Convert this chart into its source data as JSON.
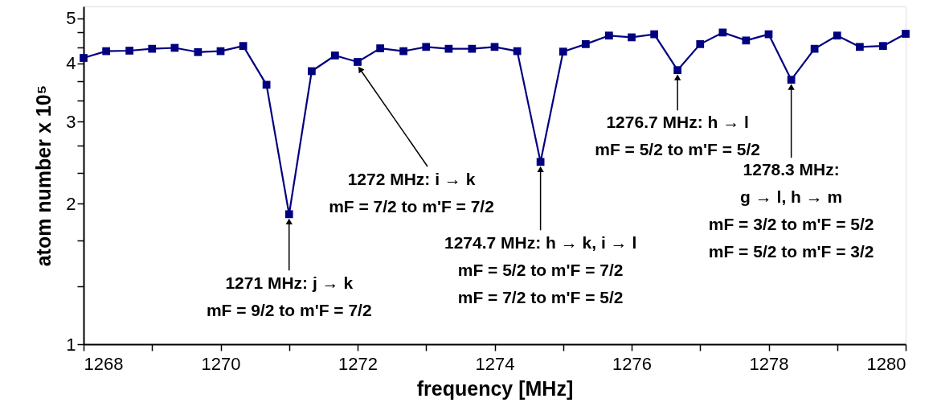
{
  "chart_data": {
    "type": "line",
    "xlabel": "frequency [MHz]",
    "ylabel": "atom number x 10⁵",
    "x": [
      1268,
      1268.33,
      1268.67,
      1269,
      1269.33,
      1269.67,
      1270,
      1270.33,
      1270.67,
      1271,
      1271.33,
      1271.67,
      1272,
      1272.33,
      1272.67,
      1273,
      1273.33,
      1273.67,
      1274,
      1274.33,
      1274.67,
      1275,
      1275.33,
      1275.67,
      1276,
      1276.33,
      1276.67,
      1277,
      1277.33,
      1277.67,
      1278,
      1278.33,
      1278.67,
      1279,
      1279.33,
      1279.67,
      1280
    ],
    "series": [
      {
        "color": "#000080",
        "values": [
          4.11,
          4.25,
          4.26,
          4.3,
          4.32,
          4.23,
          4.25,
          4.36,
          3.6,
          1.9,
          3.85,
          4.16,
          4.03,
          4.31,
          4.25,
          4.34,
          4.3,
          4.3,
          4.34,
          4.25,
          2.46,
          4.24,
          4.4,
          4.59,
          4.55,
          4.62,
          3.87,
          4.4,
          4.66,
          4.48,
          4.62,
          3.69,
          4.3,
          4.59,
          4.34,
          4.36,
          4.63
        ]
      }
    ],
    "xlim": [
      1268,
      1280
    ],
    "xticks": [
      1268,
      {
        "value": 1269,
        "label": null
      },
      1270,
      {
        "value": 1271,
        "label": null
      },
      1272,
      {
        "value": 1273,
        "label": null
      },
      1274,
      {
        "value": 1275,
        "label": null
      },
      1276,
      {
        "value": 1277,
        "label": null
      },
      1278,
      {
        "value": 1279,
        "label": null
      },
      1280
    ],
    "ylim": [
      1,
      5.3
    ],
    "yticks": [
      1,
      {
        "value": 1.333,
        "label": null
      },
      {
        "value": 1.667,
        "label": null
      },
      2,
      {
        "value": 2.333,
        "label": null
      },
      {
        "value": 2.667,
        "label": null
      },
      3,
      {
        "value": 3.333,
        "label": null
      },
      {
        "value": 3.667,
        "label": null
      },
      4,
      {
        "value": 4.333,
        "label": null
      },
      {
        "value": 4.667,
        "label": null
      },
      5
    ],
    "log": "y",
    "grid": false,
    "marker": "square",
    "line_style": "solid",
    "annotations": [
      {
        "text": "1271 MHz: j → k\nmF = 9/2 to m'F = 7/2",
        "x": 1271,
        "y": 1.9
      },
      {
        "text": "1272 MHz: i → k\nmF = 7/2 to m'F = 7/2",
        "x": 1272,
        "y": 4.03
      },
      {
        "text": "1274.7 MHz: h → k, i → l\nmF = 5/2 to m'F = 7/2\nmF = 7/2 to m'F = 5/2",
        "x": 1274.67,
        "y": 2.46
      },
      {
        "text": "1276.7 MHz: h → l\nmF = 5/2 to m'F = 5/2",
        "x": 1276.67,
        "y": 3.87
      },
      {
        "text": "1278.3 MHz:\ng → l, h → m\nmF = 3/2 to m'F = 5/2\nmF = 5/2 to m'F = 3/2",
        "x": 1278.33,
        "y": 3.69
      }
    ]
  }
}
